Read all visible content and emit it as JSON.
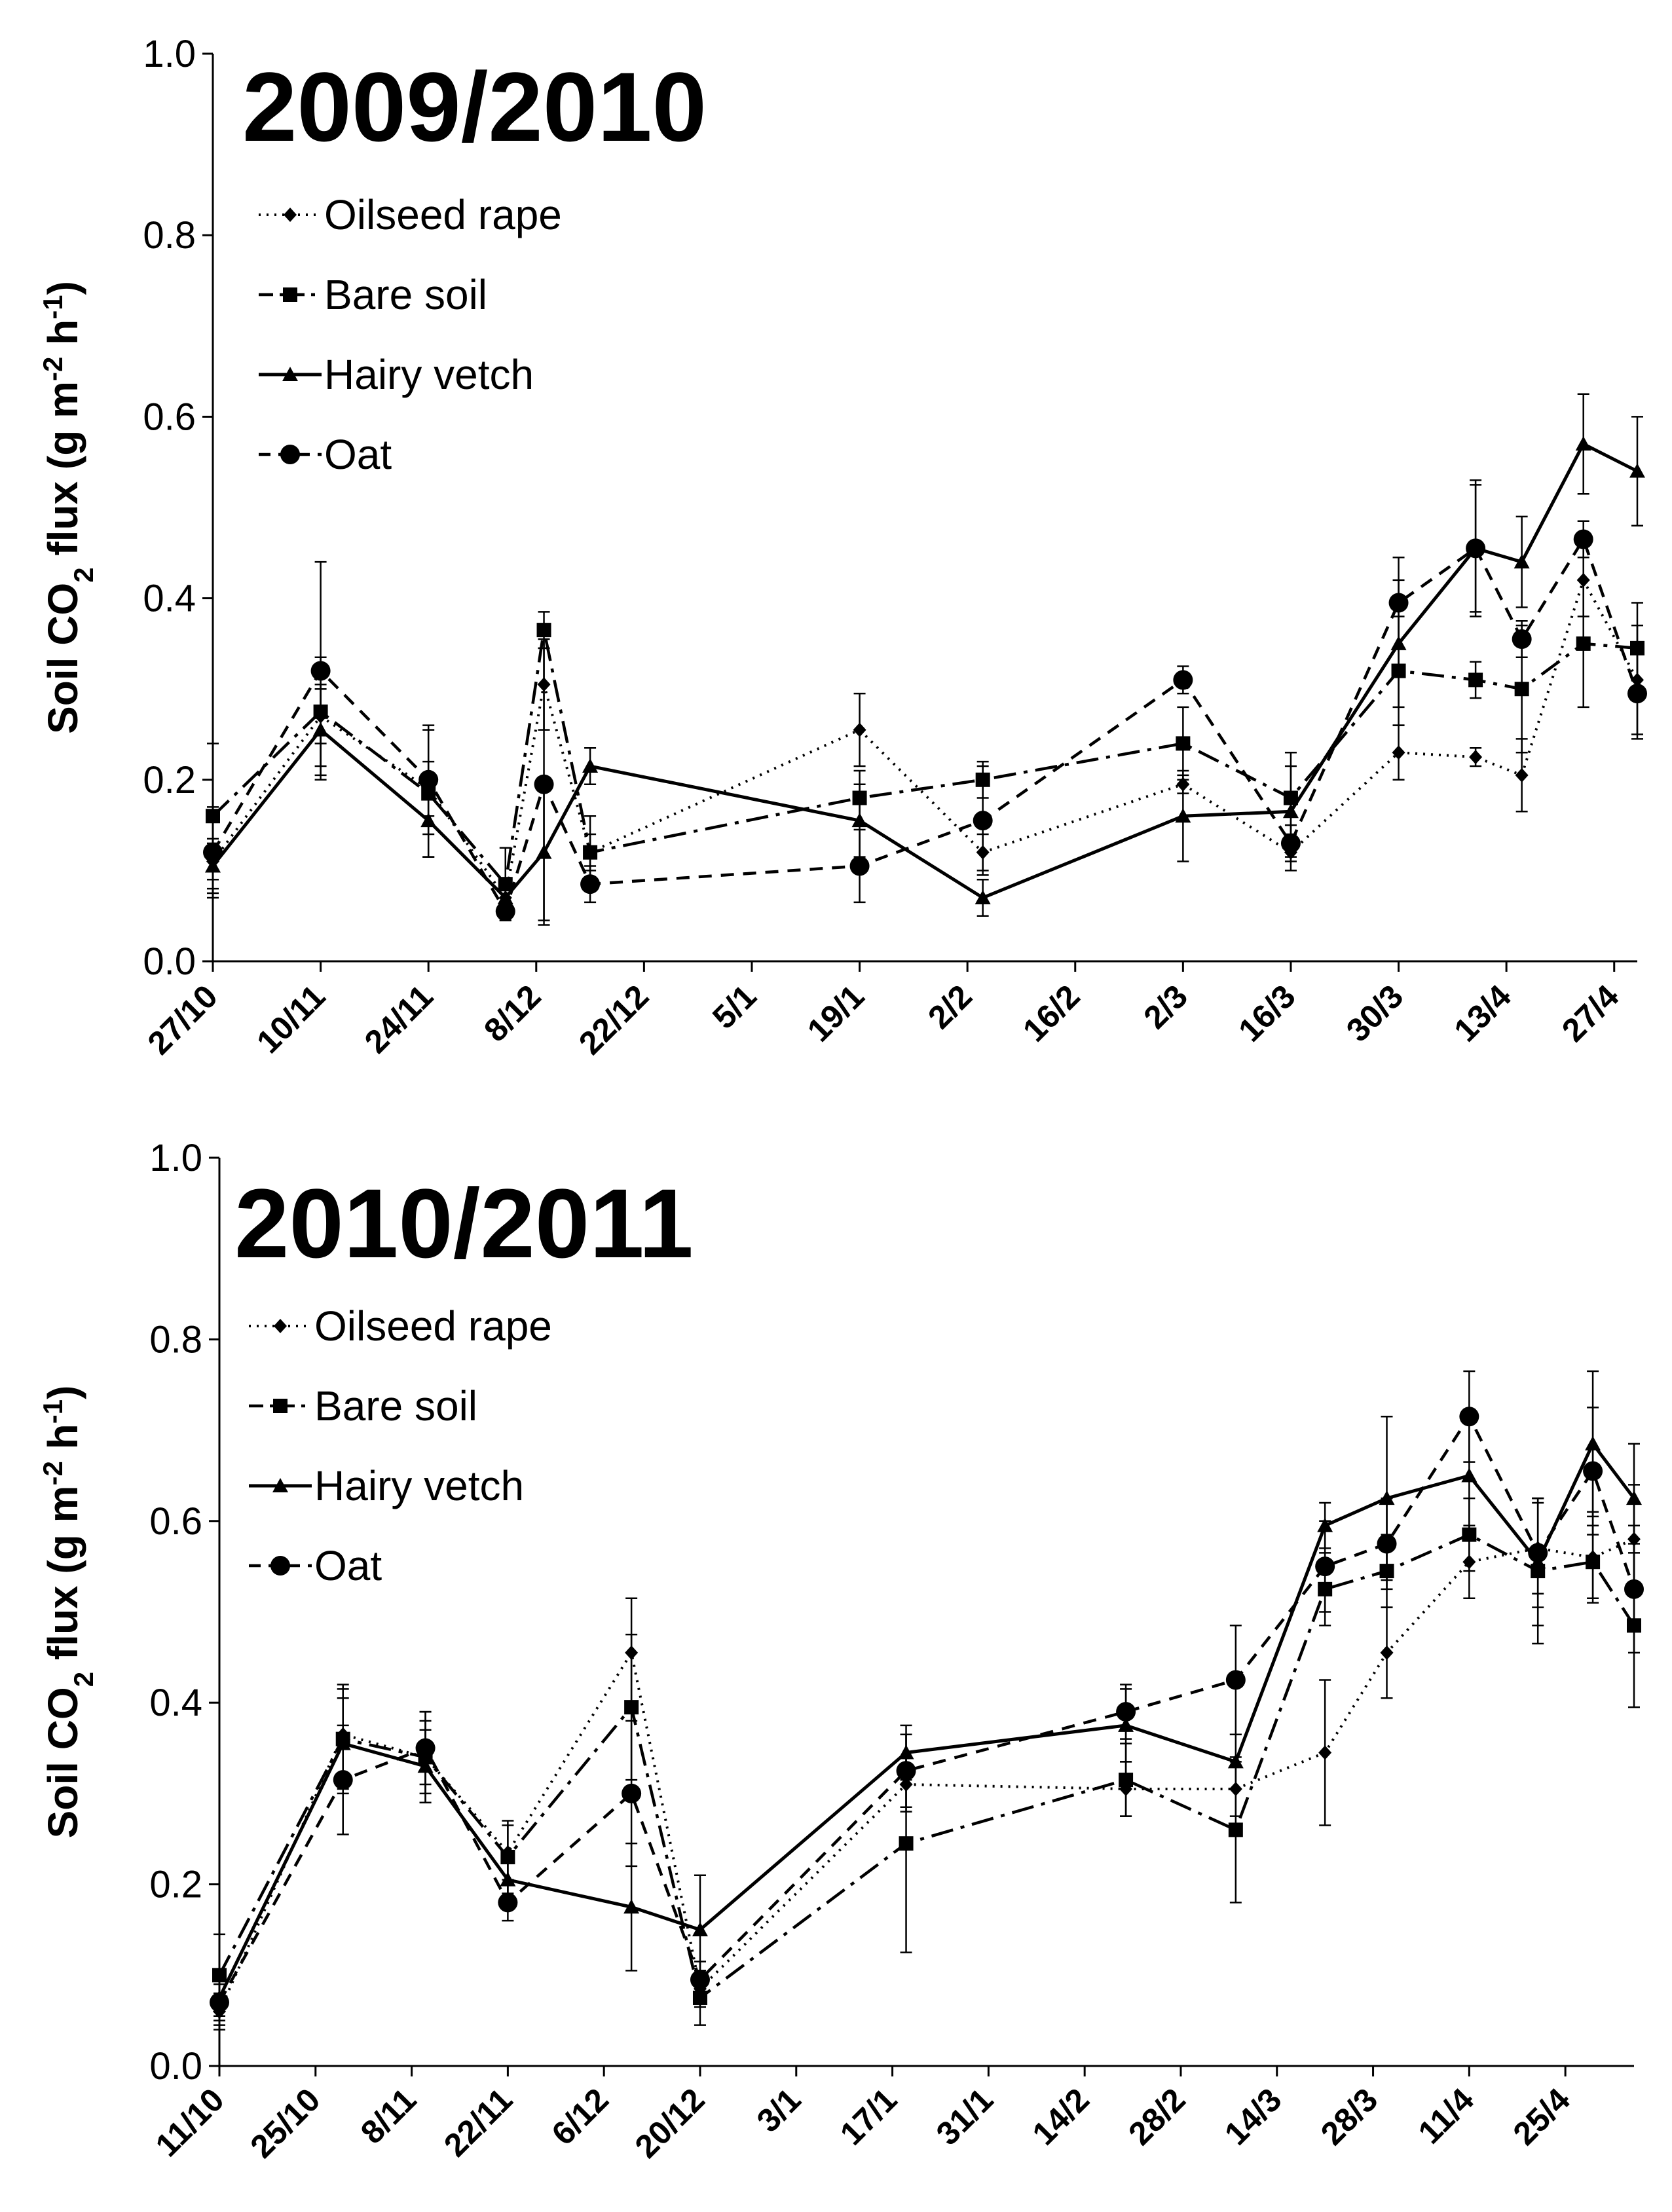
{
  "chart_data": [
    {
      "type": "line",
      "title": "2009/2010",
      "ylabel": "Soil CO2 flux (g m-2 h-1)",
      "ylim": [
        0,
        1.0
      ],
      "yticks": [
        "0.0",
        "0.2",
        "0.4",
        "0.6",
        "0.8",
        "1.0"
      ],
      "ytick_values": [
        0,
        0.2,
        0.4,
        0.6,
        0.8,
        1.0
      ],
      "xlim": [
        0,
        185
      ],
      "xtick_labels": [
        "27/10",
        "10/11",
        "24/11",
        "8/12",
        "22/12",
        "5/1",
        "19/1",
        "2/2",
        "16/2",
        "2/3",
        "16/3",
        "30/3",
        "13/4",
        "27/4"
      ],
      "xtick_days": [
        0,
        14,
        28,
        42,
        56,
        70,
        84,
        98,
        112,
        126,
        140,
        154,
        168,
        182
      ],
      "legend": [
        "Oilseed rape",
        "Bare soil",
        "Hairy vetch",
        "Oat"
      ],
      "series": [
        {
          "name": "Oilseed rape",
          "x": [
            0,
            14,
            28,
            38,
            43,
            49,
            84,
            100,
            126,
            140,
            154,
            164,
            170,
            178,
            185
          ],
          "values": [
            0.11,
            0.27,
            0.19,
            0.07,
            0.305,
            0.12,
            0.255,
            0.12,
            0.195,
            0.12,
            0.23,
            0.225,
            0.205,
            0.42,
            0.31
          ],
          "errors": [
            0.02,
            0.03,
            0.03,
            0.02,
            0.05,
            0.02,
            0.04,
            0.02,
            0.01,
            0.02,
            0.03,
            0.01,
            0.04,
            0.04,
            0.06
          ]
        },
        {
          "name": "Bare soil",
          "x": [
            0,
            14,
            28,
            38,
            43,
            49,
            84,
            100,
            126,
            140,
            154,
            164,
            170,
            178,
            185
          ],
          "values": [
            0.16,
            0.275,
            0.185,
            0.085,
            0.365,
            0.12,
            0.18,
            0.2,
            0.24,
            0.18,
            0.32,
            0.31,
            0.3,
            0.35,
            0.345
          ],
          "errors": [
            0.08,
            0.06,
            0.07,
            0.04,
            0.02,
            0.04,
            0.03,
            0.02,
            0.04,
            0.05,
            0.06,
            0.02,
            0.07,
            0.07,
            0.05
          ]
        },
        {
          "name": "Hairy vetch",
          "x": [
            0,
            14,
            28,
            38,
            43,
            49,
            84,
            100,
            126,
            140,
            154,
            164,
            170,
            178,
            185
          ],
          "values": [
            0.105,
            0.255,
            0.155,
            0.07,
            0.12,
            0.215,
            0.155,
            0.07,
            0.16,
            0.165,
            0.35,
            0.455,
            0.44,
            0.57,
            0.54
          ],
          "errors": [
            0.03,
            0.05,
            0.04,
            0.02,
            0.08,
            0.02,
            0.04,
            0.02,
            0.05,
            0.05,
            0.07,
            0.07,
            0.05,
            0.055,
            0.06
          ]
        },
        {
          "name": "Oat",
          "x": [
            0,
            14,
            28,
            38,
            43,
            49,
            84,
            100,
            126,
            140,
            154,
            164,
            170,
            178,
            185
          ],
          "values": [
            0.12,
            0.32,
            0.2,
            0.055,
            0.195,
            0.085,
            0.105,
            0.155,
            0.31,
            0.13,
            0.395,
            0.455,
            0.355,
            0.465,
            0.295
          ],
          "errors": [
            0.05,
            0.12,
            0.06,
            0.01,
            0.15,
            0.02,
            0.04,
            0.06,
            0.015,
            0.02,
            0.05,
            0.075,
            0.02,
            0.02,
            0.05
          ]
        }
      ]
    },
    {
      "type": "line",
      "title": "2010/2011",
      "ylabel": "Soil CO2 flux (g m-2 h-1)",
      "ylim": [
        0,
        1.0
      ],
      "yticks": [
        "0.0",
        "0.2",
        "0.4",
        "0.6",
        "0.8",
        "1.0"
      ],
      "ytick_values": [
        0,
        0.2,
        0.4,
        0.6,
        0.8,
        1.0
      ],
      "xlim": [
        0,
        206
      ],
      "xtick_labels": [
        "11/10",
        "25/10",
        "8/11",
        "22/11",
        "6/12",
        "20/12",
        "3/1",
        "17/1",
        "31/1",
        "14/2",
        "28/2",
        "14/3",
        "28/3",
        "11/4",
        "25/4"
      ],
      "xtick_days": [
        0,
        14,
        28,
        42,
        56,
        70,
        84,
        98,
        112,
        126,
        140,
        154,
        168,
        182,
        196
      ],
      "legend": [
        "Oilseed rape",
        "Bare soil",
        "Hairy vetch",
        "Oat"
      ],
      "series": [
        {
          "name": "Oilseed rape",
          "x": [
            0,
            18,
            30,
            42,
            60,
            70,
            100,
            132,
            148,
            161,
            170,
            182,
            192,
            200,
            206
          ],
          "values": [
            0.06,
            0.365,
            0.34,
            0.235,
            0.455,
            0.085,
            0.31,
            0.305,
            0.305,
            0.345,
            0.455,
            0.555,
            0.57,
            0.56,
            0.58
          ],
          "errors": [
            0.02,
            0.05,
            0.04,
            0.03,
            0.06,
            0.02,
            0.03,
            0.03,
            0.03,
            0.08,
            0.05,
            0.04,
            0.05,
            0.05,
            0.06
          ]
        },
        {
          "name": "Bare soil",
          "x": [
            0,
            18,
            30,
            42,
            60,
            70,
            100,
            132,
            148,
            161,
            170,
            182,
            192,
            200,
            206
          ],
          "values": [
            0.1,
            0.36,
            0.34,
            0.23,
            0.395,
            0.075,
            0.245,
            0.315,
            0.26,
            0.525,
            0.545,
            0.585,
            0.545,
            0.555,
            0.485
          ],
          "errors": [
            0.045,
            0.06,
            0.05,
            0.04,
            0.08,
            0.03,
            0.12,
            0.04,
            0.08,
            0.04,
            0.04,
            0.04,
            0.08,
            0.04,
            0.09
          ]
        },
        {
          "name": "Hairy vetch",
          "x": [
            0,
            18,
            30,
            42,
            60,
            70,
            100,
            132,
            148,
            161,
            170,
            182,
            192,
            200,
            206
          ],
          "values": [
            0.075,
            0.355,
            0.33,
            0.205,
            0.175,
            0.15,
            0.345,
            0.375,
            0.335,
            0.595,
            0.625,
            0.65,
            0.555,
            0.685,
            0.625
          ],
          "errors": [
            0.03,
            0.05,
            0.04,
            0.02,
            0.07,
            0.06,
            0.03,
            0.04,
            0.03,
            0.025,
            0.09,
            0.07,
            0.07,
            0.08,
            0.06
          ]
        },
        {
          "name": "Oat",
          "x": [
            0,
            18,
            30,
            42,
            60,
            70,
            100,
            132,
            148,
            161,
            170,
            182,
            192,
            200,
            206
          ],
          "values": [
            0.07,
            0.315,
            0.35,
            0.18,
            0.3,
            0.095,
            0.325,
            0.39,
            0.425,
            0.55,
            0.575,
            0.715,
            0.565,
            0.655,
            0.525
          ],
          "errors": [
            0.02,
            0.06,
            0.04,
            0.02,
            0.08,
            0.02,
            0.04,
            0.03,
            0.06,
            0.05,
            0.05,
            0.05,
            0.06,
            0.07,
            0.07
          ]
        }
      ]
    }
  ]
}
